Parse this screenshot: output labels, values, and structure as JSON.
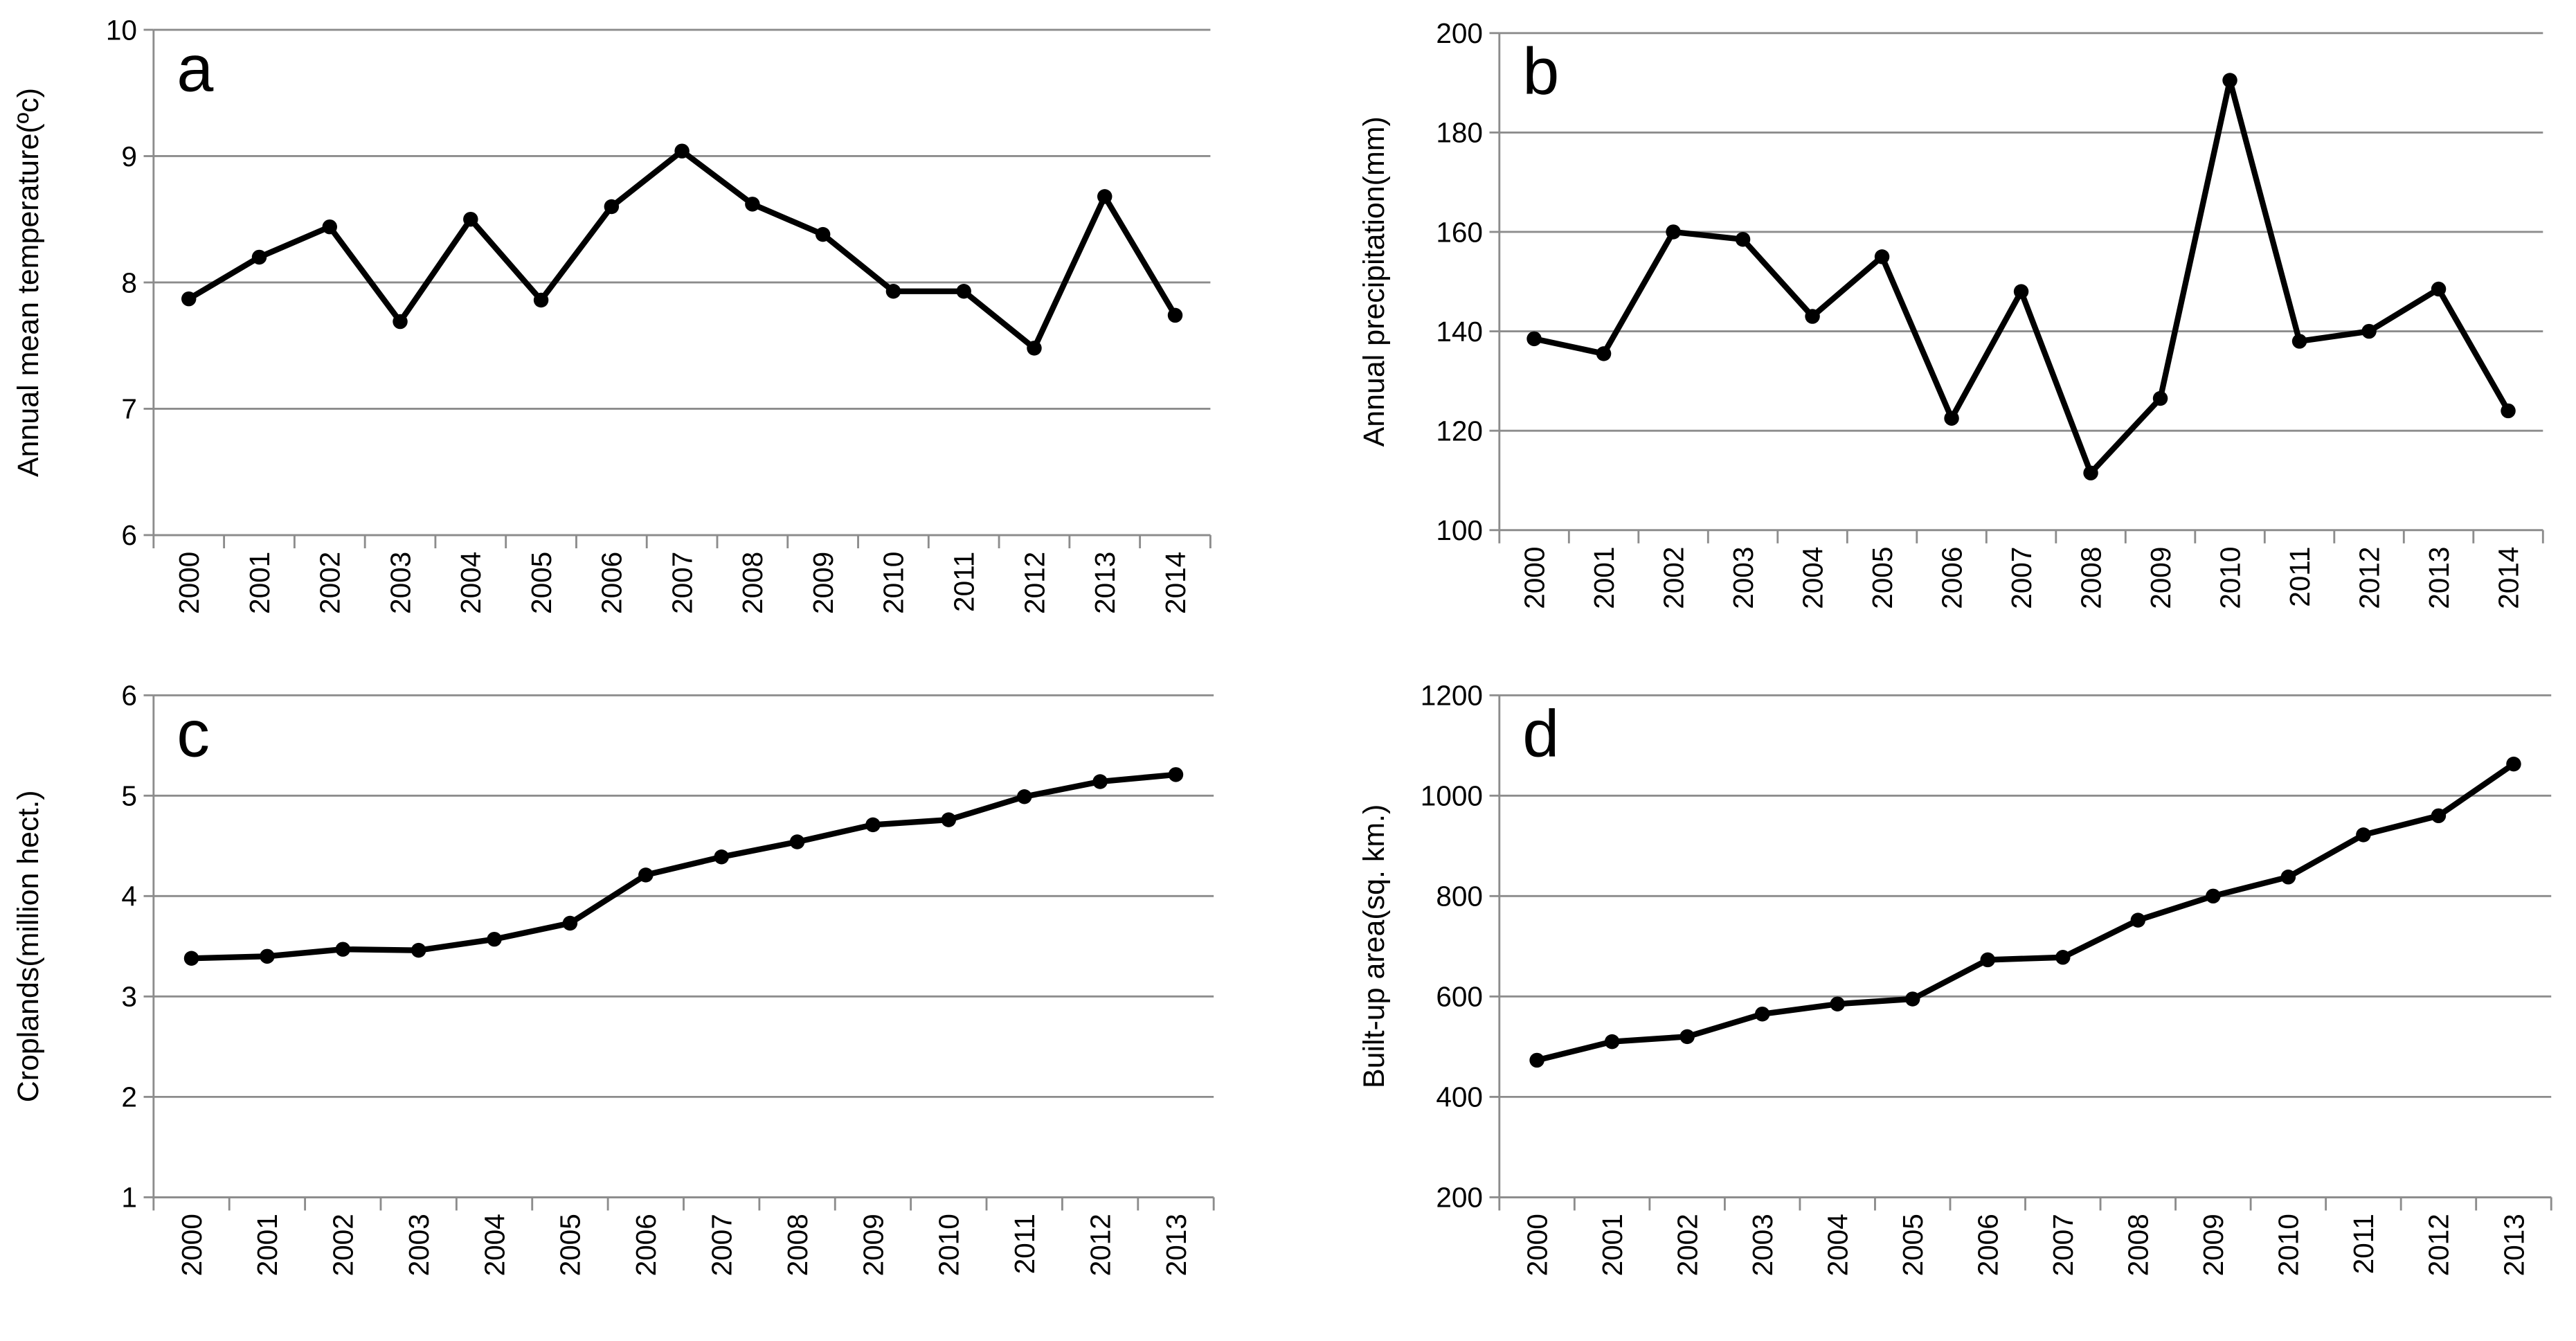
{
  "chart_data": [
    {
      "type": "line",
      "label": "a",
      "y_label": "Annual mean temperature(ºc)",
      "categories": [
        "2000",
        "2001",
        "2002",
        "2003",
        "2004",
        "2005",
        "2006",
        "2007",
        "2008",
        "2009",
        "2010",
        "2011",
        "2012",
        "2013",
        "2014"
      ],
      "values": [
        7.87,
        8.2,
        8.44,
        7.69,
        8.5,
        7.86,
        8.6,
        9.04,
        8.62,
        8.38,
        7.93,
        7.93,
        7.48,
        8.68,
        7.74
      ],
      "color": "#000000",
      "ylim": [
        6,
        10
      ],
      "yticks": [
        6,
        7,
        8,
        9,
        10
      ],
      "grid": true
    },
    {
      "type": "line",
      "label": "b",
      "y_label": "Annual precipitation(mm)",
      "categories": [
        "2000",
        "2001",
        "2002",
        "2003",
        "2004",
        "2005",
        "2006",
        "2007",
        "2008",
        "2009",
        "2010",
        "2011",
        "2012",
        "2013",
        "2014"
      ],
      "values": [
        138.5,
        135.5,
        160,
        158.5,
        143,
        155,
        122.5,
        148,
        111.5,
        126.5,
        190.5,
        138,
        140,
        148.5,
        124
      ],
      "color": "#000000",
      "ylim": [
        100,
        200
      ],
      "yticks": [
        100,
        120,
        140,
        160,
        180,
        200
      ],
      "grid": true
    },
    {
      "type": "line",
      "label": "c",
      "y_label": "Croplands(million hect.)",
      "categories": [
        "2000",
        "2001",
        "2002",
        "2003",
        "2004",
        "2005",
        "2006",
        "2007",
        "2008",
        "2009",
        "2010",
        "2011",
        "2012",
        "2013"
      ],
      "values": [
        3.38,
        3.4,
        3.47,
        3.46,
        3.57,
        3.73,
        4.21,
        4.39,
        4.54,
        4.71,
        4.76,
        4.99,
        5.14,
        5.21
      ],
      "color": "#000000",
      "ylim": [
        1,
        6
      ],
      "yticks": [
        1,
        2,
        3,
        4,
        5,
        6
      ],
      "grid": true
    },
    {
      "type": "line",
      "label": "d",
      "y_label": "Built-up area(sq. km.)",
      "categories": [
        "2000",
        "2001",
        "2002",
        "2003",
        "2004",
        "2005",
        "2006",
        "2007",
        "2008",
        "2009",
        "2010",
        "2011",
        "2012",
        "2013"
      ],
      "values": [
        473,
        510,
        520,
        565,
        585,
        595,
        673,
        678,
        752,
        800,
        838,
        922,
        960,
        1063
      ],
      "color": "#000000",
      "ylim": [
        200,
        1200
      ],
      "yticks": [
        200,
        400,
        600,
        800,
        1000,
        1200
      ],
      "grid": true
    }
  ]
}
